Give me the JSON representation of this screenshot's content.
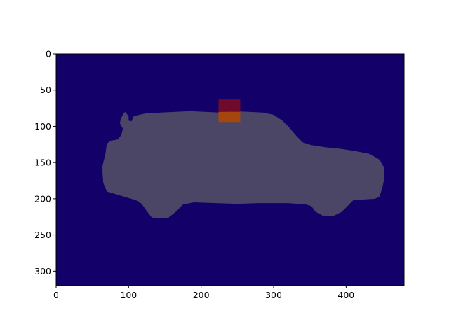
{
  "chart_data": {
    "type": "heatmap",
    "title": "",
    "xlabel": "",
    "ylabel": "",
    "xlim": [
      0,
      480
    ],
    "ylim": [
      320,
      0
    ],
    "y_inverted": true,
    "x_ticks": [
      0,
      100,
      200,
      300,
      400
    ],
    "y_ticks": [
      0,
      50,
      100,
      150,
      200,
      250,
      300
    ],
    "grid": false,
    "legend": "none",
    "colors": {
      "background": "#140069",
      "car_mask": "#4b4665",
      "box_top": "#6e0a2b",
      "box_bottom": "#a4460e"
    },
    "regions": [
      {
        "name": "car-silhouette",
        "outline": [
          [
            64,
            155
          ],
          [
            65,
            150
          ],
          [
            68,
            138
          ],
          [
            70,
            124
          ],
          [
            75,
            120
          ],
          [
            85,
            118
          ],
          [
            90,
            112
          ],
          [
            92,
            103
          ],
          [
            88,
            96
          ],
          [
            89,
            90
          ],
          [
            92,
            84
          ],
          [
            95,
            80
          ],
          [
            100,
            86
          ],
          [
            100,
            92
          ],
          [
            104,
            93
          ],
          [
            107,
            86
          ],
          [
            115,
            84
          ],
          [
            125,
            82
          ],
          [
            145,
            81
          ],
          [
            165,
            80
          ],
          [
            185,
            79
          ],
          [
            205,
            80
          ],
          [
            225,
            81
          ],
          [
            245,
            79
          ],
          [
            265,
            80
          ],
          [
            285,
            81
          ],
          [
            300,
            84
          ],
          [
            312,
            92
          ],
          [
            322,
            102
          ],
          [
            332,
            114
          ],
          [
            340,
            122
          ],
          [
            352,
            126
          ],
          [
            372,
            129
          ],
          [
            392,
            131
          ],
          [
            412,
            134
          ],
          [
            432,
            138
          ],
          [
            446,
            146
          ],
          [
            452,
            156
          ],
          [
            453,
            170
          ],
          [
            450,
            185
          ],
          [
            446,
            197
          ],
          [
            440,
            200
          ],
          [
            425,
            201
          ],
          [
            410,
            202
          ],
          [
            402,
            210
          ],
          [
            394,
            218
          ],
          [
            382,
            224
          ],
          [
            369,
            224
          ],
          [
            358,
            218
          ],
          [
            352,
            210
          ],
          [
            345,
            208
          ],
          [
            320,
            206
          ],
          [
            280,
            206
          ],
          [
            250,
            207
          ],
          [
            220,
            206
          ],
          [
            190,
            205
          ],
          [
            175,
            208
          ],
          [
            165,
            218
          ],
          [
            155,
            226
          ],
          [
            145,
            227
          ],
          [
            132,
            226
          ],
          [
            125,
            217
          ],
          [
            118,
            207
          ],
          [
            110,
            202
          ],
          [
            90,
            196
          ],
          [
            70,
            190
          ],
          [
            65,
            178
          ],
          [
            64,
            165
          ]
        ]
      },
      {
        "name": "box-top",
        "x": [
          224,
          254
        ],
        "y": [
          63,
          80
        ]
      },
      {
        "name": "box-bottom",
        "x": [
          224,
          254
        ],
        "y": [
          80,
          94
        ]
      }
    ]
  }
}
